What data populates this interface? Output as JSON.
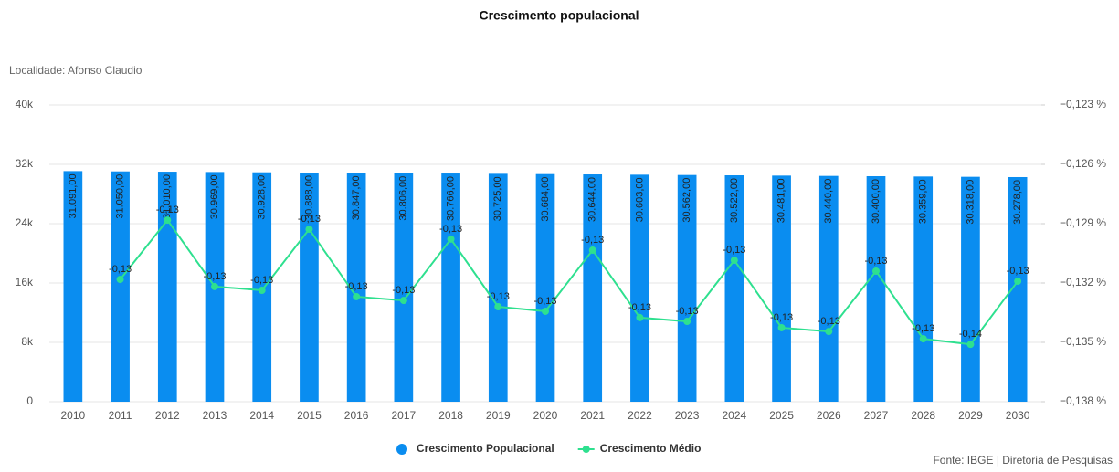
{
  "chart_data": {
    "type": "bar_line",
    "title": "Crescimento populacional",
    "subtitle": "Localidade: Afonso Claudio",
    "source": "Fonte: IBGE | Diretoria de Pesquisas",
    "categories": [
      "2010",
      "2011",
      "2012",
      "2013",
      "2014",
      "2015",
      "2016",
      "2017",
      "2018",
      "2019",
      "2020",
      "2021",
      "2022",
      "2023",
      "2024",
      "2025",
      "2026",
      "2027",
      "2028",
      "2029",
      "2030"
    ],
    "series": [
      {
        "name": "Crescimento Populacional",
        "color": "#0a8df0",
        "type": "bar",
        "values": [
          31091,
          31050,
          31010,
          30969,
          30928,
          30888,
          30847,
          30806,
          30766,
          30725,
          30684,
          30644,
          30603,
          30562,
          30522,
          30481,
          30440,
          30400,
          30359,
          30318,
          30278
        ],
        "value_labels": [
          "31.091,00",
          "31.050,00",
          "31.010,00",
          "30.969,00",
          "30.928,00",
          "30.888,00",
          "30.847,00",
          "30.806,00",
          "30.766,00",
          "30.725,00",
          "30.684,00",
          "30.644,00",
          "30.603,00",
          "30.562,00",
          "30.522,00",
          "30.481,00",
          "30.440,00",
          "30.400,00",
          "30.359,00",
          "30.318,00",
          "30.278,00"
        ]
      },
      {
        "name": "Crescimento Médio",
        "color": "#2ee08f",
        "type": "line",
        "axis": "y2",
        "values": [
          null,
          -0.13182,
          -0.12882,
          -0.13218,
          -0.13237,
          -0.12928,
          -0.13269,
          -0.13288,
          -0.12978,
          -0.1332,
          -0.13343,
          -0.13034,
          -0.13375,
          -0.13394,
          -0.13085,
          -0.13426,
          -0.13445,
          -0.1314,
          -0.13482,
          -0.1351,
          -0.13191
        ],
        "value_labels": [
          null,
          "-0,13",
          "-0,13",
          "-0,13",
          "-0,13",
          "-0,13",
          "-0,13",
          "-0,13",
          "-0,13",
          "-0,13",
          "-0,13",
          "-0,13",
          "-0,13",
          "-0,13",
          "-0,13",
          "-0,13",
          "-0,13",
          "-0,13",
          "-0,13",
          "-0,14",
          "-0,13"
        ]
      }
    ],
    "ylim": [
      0,
      40000
    ],
    "yticks": [
      0,
      {
        "value": 8000,
        "label": "8k"
      },
      {
        "value": 16000,
        "label": "16k"
      },
      {
        "value": 24000,
        "label": "24k"
      },
      {
        "value": 32000,
        "label": "32k"
      },
      {
        "value": 40000,
        "label": "40k"
      }
    ],
    "y2lim": [
      -0.138,
      -0.123
    ],
    "y2ticks": [
      {
        "value": -0.138,
        "label": "−0,138 %"
      },
      {
        "value": -0.135,
        "label": "−0,135 %"
      },
      {
        "value": -0.132,
        "label": "−0,132 %"
      },
      {
        "value": -0.129,
        "label": "−0,129 %"
      },
      {
        "value": -0.126,
        "label": "−0,126 %"
      },
      {
        "value": -0.123,
        "label": "−0,123 %"
      }
    ],
    "grid": true,
    "legend": "bottom"
  }
}
